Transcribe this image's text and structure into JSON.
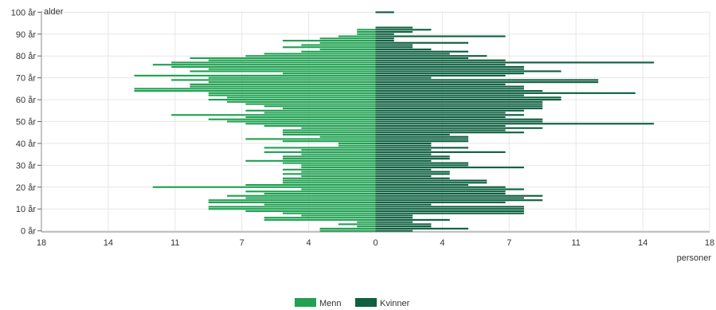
{
  "chart_data": {
    "type": "bar",
    "orientation": "horizontal",
    "subtype": "population-pyramid",
    "title": "",
    "xlabel": "personer",
    "ylabel": "alder",
    "x_ticks": [
      18,
      14,
      11,
      7,
      4,
      0,
      4,
      7,
      11,
      14,
      18
    ],
    "xlim": [
      -18,
      18
    ],
    "y_ticks": [
      "0 år",
      "10 år",
      "20 år",
      "30 år",
      "40 år",
      "50 år",
      "60 år",
      "70 år",
      "80 år",
      "90 år",
      "100 år"
    ],
    "ylim": [
      0,
      101
    ],
    "grid": true,
    "legend_position": "bottom",
    "ages": [
      0,
      1,
      2,
      3,
      4,
      5,
      6,
      7,
      8,
      9,
      10,
      11,
      12,
      13,
      14,
      15,
      16,
      17,
      18,
      19,
      20,
      21,
      22,
      23,
      24,
      25,
      26,
      27,
      28,
      29,
      30,
      31,
      32,
      33,
      34,
      35,
      36,
      37,
      38,
      39,
      40,
      41,
      42,
      43,
      44,
      45,
      46,
      47,
      48,
      49,
      50,
      51,
      52,
      53,
      54,
      55,
      56,
      57,
      58,
      59,
      60,
      61,
      62,
      63,
      64,
      65,
      66,
      67,
      68,
      69,
      70,
      71,
      72,
      73,
      74,
      75,
      76,
      77,
      78,
      79,
      80,
      81,
      82,
      83,
      84,
      85,
      86,
      87,
      88,
      89,
      90,
      91,
      92,
      93,
      94,
      95,
      96,
      97,
      98,
      99,
      100
    ],
    "series": [
      {
        "name": "Menn",
        "color": "#21a152",
        "values": [
          3,
          3,
          1,
          2,
          1,
          6,
          6,
          4,
          5,
          7,
          9,
          9,
          6,
          9,
          9,
          7,
          8,
          6,
          7,
          4,
          12,
          7,
          5,
          5,
          5,
          4,
          5,
          4,
          5,
          4,
          4,
          5,
          7,
          5,
          5,
          4,
          6,
          4,
          6,
          2,
          2,
          5,
          7,
          3,
          5,
          5,
          5,
          4,
          6,
          7,
          8,
          9,
          7,
          11,
          6,
          7,
          5,
          6,
          7,
          8,
          9,
          8,
          9,
          9,
          13,
          13,
          10,
          10,
          9,
          11,
          9,
          13,
          5,
          10,
          9,
          11,
          12,
          11,
          9,
          10,
          7,
          6,
          4,
          3,
          5,
          4,
          3,
          5,
          3,
          2,
          1,
          1,
          1,
          0,
          0,
          0,
          0,
          0,
          0,
          0,
          0
        ]
      },
      {
        "name": "Kvinner",
        "color": "#0e6040",
        "values": [
          2,
          5,
          3,
          3,
          2,
          4,
          2,
          2,
          8,
          8,
          8,
          8,
          3,
          7,
          9,
          8,
          9,
          7,
          7,
          8,
          7,
          5,
          6,
          6,
          4,
          3,
          4,
          4,
          3,
          8,
          5,
          5,
          3,
          4,
          4,
          3,
          7,
          3,
          5,
          3,
          3,
          5,
          5,
          5,
          4,
          8,
          7,
          9,
          7,
          15,
          9,
          9,
          7,
          8,
          7,
          8,
          9,
          9,
          9,
          9,
          10,
          10,
          8,
          14,
          9,
          8,
          8,
          7,
          12,
          12,
          3,
          7,
          8,
          10,
          8,
          8,
          7,
          15,
          7,
          5,
          6,
          4,
          5,
          3,
          2,
          2,
          5,
          1,
          1,
          7,
          1,
          2,
          3,
          2,
          0,
          0,
          0,
          0,
          0,
          0,
          1
        ]
      }
    ]
  }
}
